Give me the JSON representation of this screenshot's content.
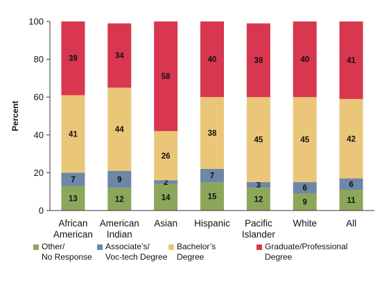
{
  "chart_data": {
    "type": "bar",
    "stacked": true,
    "ylabel": "Percent",
    "xlabel": "",
    "ylim": [
      0,
      100
    ],
    "yticks": [
      0,
      20,
      40,
      60,
      80,
      100
    ],
    "grid": false,
    "legend_position": "bottom",
    "categories": [
      [
        "African",
        "American"
      ],
      [
        "American",
        "Indian"
      ],
      [
        "Asian"
      ],
      [
        "Hispanic"
      ],
      [
        "Pacific",
        "Islander"
      ],
      [
        "White"
      ],
      [
        "All"
      ]
    ],
    "series": [
      {
        "name": [
          "Other/",
          "No Response"
        ],
        "color": "#8ca75a",
        "values": [
          13,
          12,
          14,
          15,
          12,
          9,
          11
        ]
      },
      {
        "name": [
          "Associate’s/",
          "Voc-tech Degree"
        ],
        "color": "#6e87a8",
        "values": [
          7,
          9,
          2,
          7,
          3,
          6,
          6
        ]
      },
      {
        "name": [
          "Bachelor’s",
          "Degree"
        ],
        "color": "#eac679",
        "values": [
          41,
          44,
          26,
          38,
          45,
          45,
          42
        ]
      },
      {
        "name": [
          "Graduate/Professional",
          "Degree"
        ],
        "color": "#d8374f",
        "values": [
          39,
          34,
          58,
          40,
          39,
          40,
          41
        ]
      }
    ]
  }
}
